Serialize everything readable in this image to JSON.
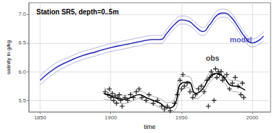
{
  "chart_data": {
    "type": "line",
    "title": "Station SR5, depth=0..5m",
    "x_label": "time",
    "y_label": "salinity in g/kg",
    "xlim": [
      1842,
      2013
    ],
    "xticks": [
      1850,
      1900,
      1950,
      2000
    ],
    "ylim": [
      5.3,
      7.2
    ],
    "yticks": [
      5.5,
      {
        "value": 6.0,
        "label": "6.0"
      },
      6.5,
      {
        "value": 7.0,
        "label": "7.0"
      }
    ],
    "grid": true,
    "series": [
      {
        "name": "model",
        "color": "#2a2ab5",
        "x": [
          1850,
          1860,
          1870,
          1880,
          1890,
          1900,
          1910,
          1920,
          1930,
          1935,
          1940,
          1945,
          1950,
          1955,
          1960,
          1965,
          1970,
          1975,
          1980,
          1985,
          1990,
          1995,
          2000,
          2005,
          2008
        ],
        "values": [
          5.85,
          6.05,
          6.18,
          6.28,
          6.35,
          6.42,
          6.47,
          6.52,
          6.56,
          6.56,
          6.68,
          6.82,
          6.9,
          6.88,
          6.78,
          6.7,
          6.82,
          6.98,
          7.02,
          6.95,
          6.78,
          6.6,
          6.5,
          6.55,
          6.62
        ],
        "lower": [
          5.77,
          5.97,
          6.11,
          6.21,
          6.28,
          6.35,
          6.4,
          6.45,
          6.49,
          6.49,
          6.61,
          6.75,
          6.83,
          6.81,
          6.71,
          6.63,
          6.75,
          6.91,
          6.95,
          6.88,
          6.71,
          6.53,
          6.43,
          6.48,
          6.54
        ],
        "upper": [
          5.93,
          6.13,
          6.25,
          6.35,
          6.42,
          6.49,
          6.54,
          6.59,
          6.63,
          6.63,
          6.75,
          6.89,
          6.97,
          6.95,
          6.85,
          6.77,
          6.89,
          7.05,
          7.09,
          7.02,
          6.85,
          6.67,
          6.57,
          6.62,
          6.7
        ]
      },
      {
        "name": "obs",
        "color": "#000000",
        "x": [
          1895,
          1900,
          1905,
          1910,
          1915,
          1920,
          1925,
          1930,
          1935,
          1940,
          1945,
          1950,
          1955,
          1960,
          1965,
          1970,
          1975,
          1980,
          1985,
          1990,
          1995
        ],
        "values": [
          5.62,
          5.58,
          5.53,
          5.52,
          5.56,
          5.6,
          5.55,
          5.5,
          5.45,
          5.37,
          5.42,
          5.8,
          5.82,
          5.62,
          5.7,
          5.9,
          5.97,
          5.9,
          5.76,
          5.74,
          5.68
        ],
        "lower": [
          5.52,
          5.5,
          5.46,
          5.45,
          5.49,
          5.53,
          5.48,
          5.43,
          5.37,
          5.28,
          5.32,
          5.68,
          5.72,
          5.53,
          5.61,
          5.82,
          5.89,
          5.82,
          5.67,
          5.64,
          5.56
        ],
        "upper": [
          5.72,
          5.66,
          5.6,
          5.59,
          5.63,
          5.67,
          5.62,
          5.57,
          5.53,
          5.46,
          5.52,
          5.92,
          5.92,
          5.71,
          5.79,
          5.98,
          6.05,
          5.98,
          5.85,
          5.84,
          5.8
        ]
      },
      {
        "type": "scatter",
        "marker": "+",
        "color": "#000000",
        "x": [
          1896,
          1898,
          1899,
          1900,
          1901,
          1902,
          1903,
          1904,
          1905,
          1906,
          1907,
          1908,
          1910,
          1912,
          1914,
          1916,
          1918,
          1920,
          1922,
          1925,
          1927,
          1930,
          1933,
          1936,
          1938,
          1940,
          1942,
          1945,
          1947,
          1949,
          1950,
          1951,
          1952,
          1954,
          1956,
          1958,
          1960,
          1962,
          1964,
          1966,
          1968,
          1969,
          1970,
          1971,
          1972,
          1973,
          1974,
          1975,
          1976,
          1977,
          1978,
          1979,
          1980,
          1982,
          1984,
          1986,
          1988,
          1990,
          1992,
          1993,
          1994
        ],
        "values": [
          5.65,
          5.6,
          5.7,
          5.55,
          5.62,
          5.5,
          5.58,
          5.45,
          5.55,
          5.6,
          5.5,
          5.4,
          5.55,
          5.5,
          5.6,
          5.55,
          5.65,
          5.7,
          5.55,
          5.5,
          5.6,
          5.45,
          5.5,
          5.4,
          5.35,
          5.4,
          5.32,
          5.45,
          5.6,
          5.85,
          5.7,
          5.95,
          5.75,
          5.8,
          5.65,
          5.55,
          5.6,
          5.7,
          5.75,
          5.65,
          5.85,
          5.4,
          5.9,
          6.0,
          5.95,
          5.5,
          6.05,
          5.9,
          6.0,
          5.95,
          6.0,
          5.85,
          5.9,
          5.95,
          5.7,
          5.8,
          5.9,
          5.75,
          5.6,
          5.8,
          5.55
        ]
      }
    ],
    "annotations": [
      {
        "text": "model",
        "x": 1992,
        "y": 6.56
      },
      {
        "text": "obs",
        "x": 1972,
        "y": 6.24
      }
    ]
  }
}
